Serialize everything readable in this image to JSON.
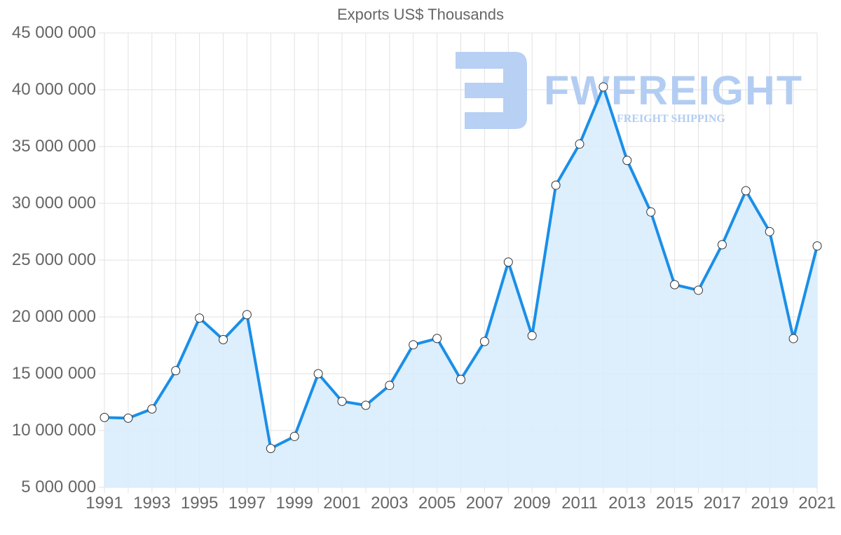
{
  "chart_data": {
    "type": "line",
    "title": "Exports US$ Thousands",
    "xlabel": "",
    "ylabel": "",
    "ylim": [
      5000000,
      45000000
    ],
    "grid": true,
    "legend": null,
    "fill": true,
    "y_ticks": [
      "5 000 000",
      "10 000 000",
      "15 000 000",
      "20 000 000",
      "25 000 000",
      "30 000 000",
      "35 000 000",
      "40 000 000",
      "45 000 000"
    ],
    "x_tick_labels": [
      "1991",
      "1993",
      "1995",
      "1997",
      "1999",
      "2001",
      "2003",
      "2005",
      "2007",
      "2009",
      "2011",
      "2013",
      "2015",
      "2017",
      "2019",
      "2021"
    ],
    "x": [
      1991,
      1992,
      1993,
      1994,
      1995,
      1996,
      1997,
      1998,
      1999,
      2000,
      2001,
      2002,
      2003,
      2004,
      2005,
      2006,
      2007,
      2008,
      2009,
      2010,
      2011,
      2012,
      2013,
      2014,
      2015,
      2016,
      2017,
      2018,
      2019,
      2020,
      2021
    ],
    "series": [
      {
        "name": "Exports US$ Thousands",
        "color": "#1a8fe8",
        "fill_color": "#d9ecfc",
        "values": [
          11150000,
          11090000,
          11900000,
          15270000,
          19900000,
          18000000,
          20200000,
          8420000,
          9480000,
          15000000,
          12570000,
          12220000,
          13970000,
          17550000,
          18100000,
          14500000,
          17840000,
          24830000,
          18350000,
          31600000,
          35220000,
          40250000,
          33780000,
          29240000,
          22840000,
          22350000,
          26360000,
          31110000,
          27510000,
          18090000,
          26250000
        ]
      }
    ]
  },
  "watermark": {
    "brand": "FWFREIGHT",
    "tagline": "FREIGHT SHIPPING",
    "color": "#b3cdf2"
  },
  "colors": {
    "text": "#666666",
    "grid": "#e2e2e2",
    "line": "#1a8fe8",
    "fill": "#d9ecfc"
  }
}
